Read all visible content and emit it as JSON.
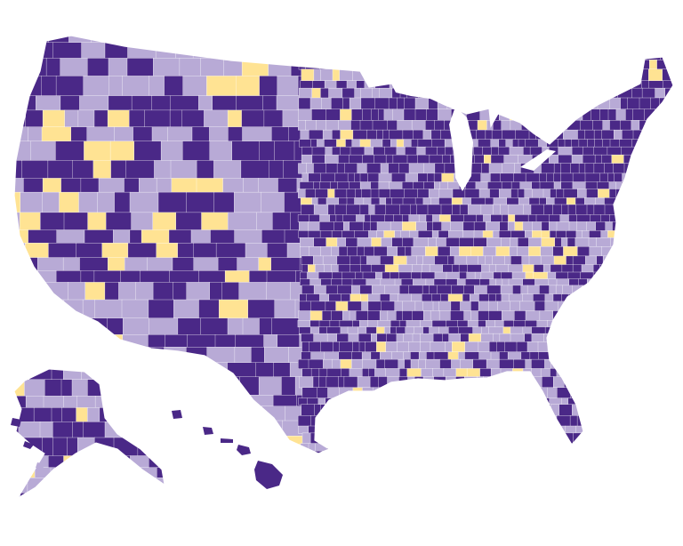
{
  "map": {
    "palette": {
      "dark": "#4a2887",
      "light": "#b8aad6",
      "yellow": "#ffe393",
      "border": "#ffffff",
      "background": "#ffffff"
    },
    "regions": [
      "contiguous-us",
      "alaska",
      "hawaii"
    ]
  }
}
